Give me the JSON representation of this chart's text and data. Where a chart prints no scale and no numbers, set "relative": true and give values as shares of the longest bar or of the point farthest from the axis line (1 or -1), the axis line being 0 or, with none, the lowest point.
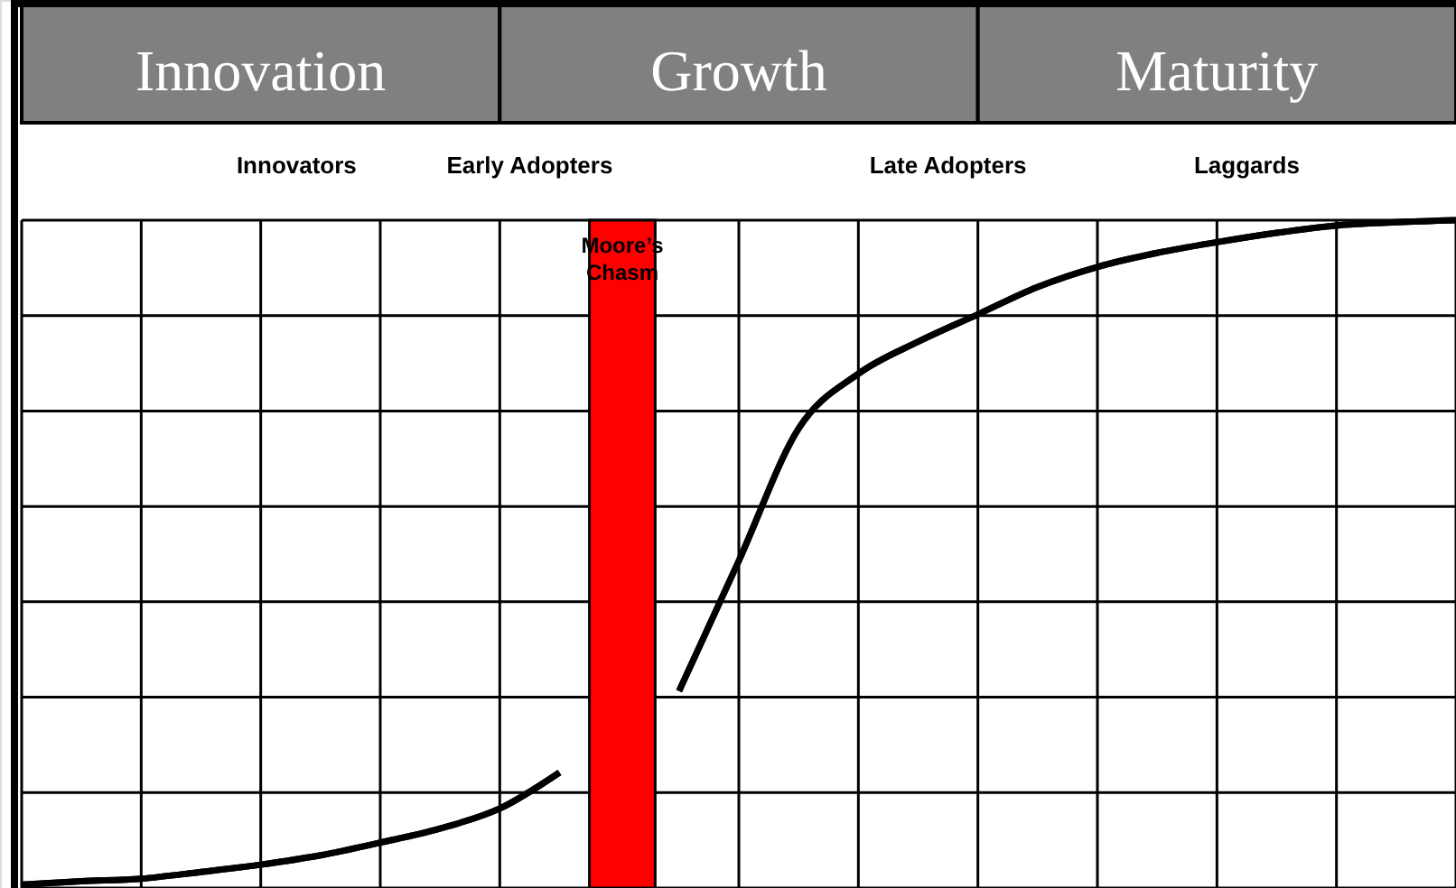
{
  "chart_data": {
    "type": "line",
    "relative": true,
    "grid": true,
    "categories": [
      null,
      null,
      null,
      null,
      null,
      null,
      null,
      null,
      null,
      null,
      null,
      null,
      null,
      null,
      null,
      null,
      null,
      null,
      null,
      null,
      null,
      null,
      null,
      null,
      null
    ],
    "series": [
      {
        "color": "#000000",
        "values": [
          0.005,
          0.01,
          0.014,
          0.024,
          0.035,
          0.049,
          0.068,
          0.089,
          0.119,
          0.173,
          null,
          0.295,
          0.49,
          0.688,
          0.77,
          0.818,
          0.859,
          0.9,
          0.93,
          0.951,
          0.967,
          0.981,
          0.992,
          0.997,
          1.0
        ]
      }
    ],
    "annotations": [
      "Innovation",
      "Growth",
      "Maturity",
      "Innovators",
      "Early Adopters",
      "Late Adopters",
      "Laggards",
      "Moore’s Chasm"
    ]
  }
}
